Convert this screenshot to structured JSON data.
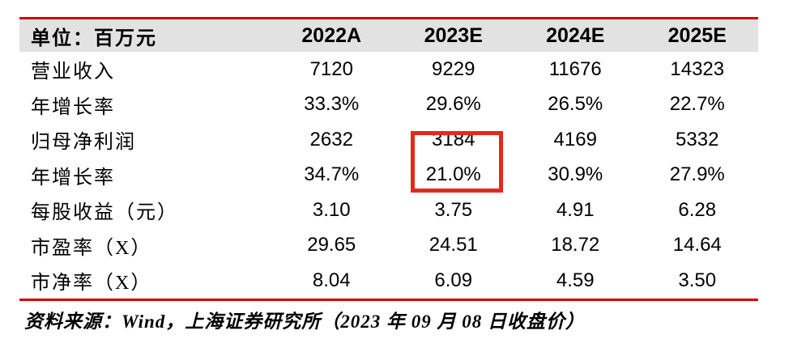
{
  "table": {
    "unit_label": "单位：百万元",
    "columns": [
      "2022A",
      "2023E",
      "2024E",
      "2025E"
    ],
    "rows": [
      {
        "label": "营业收入",
        "values": [
          "7120",
          "9229",
          "11676",
          "14323"
        ]
      },
      {
        "label": "年增长率",
        "values": [
          "33.3%",
          "29.6%",
          "26.5%",
          "22.7%"
        ]
      },
      {
        "label": "归母净利润",
        "values": [
          "2632",
          "3184",
          "4169",
          "5332"
        ]
      },
      {
        "label": "年增长率",
        "values": [
          "34.7%",
          "21.0%",
          "30.9%",
          "27.9%"
        ]
      },
      {
        "label": "每股收益（元）",
        "values": [
          "3.10",
          "3.75",
          "4.91",
          "6.28"
        ]
      },
      {
        "label": "市盈率（X）",
        "values": [
          "29.65",
          "24.51",
          "18.72",
          "14.64"
        ]
      },
      {
        "label": "市净率（X）",
        "values": [
          "8.04",
          "6.09",
          "4.59",
          "3.50"
        ]
      }
    ],
    "highlight": {
      "column": "2023E",
      "highlighted_cells": [
        "3184",
        "21.0%"
      ]
    }
  },
  "footer": {
    "source_text": "资料来源：Wind，上海证券研究所（2023 年 09 月 08 日收盘价）"
  },
  "colors": {
    "accent_red": "#d70000",
    "header_bg": "#e2e2e2",
    "highlight_box": "#e3291d"
  }
}
